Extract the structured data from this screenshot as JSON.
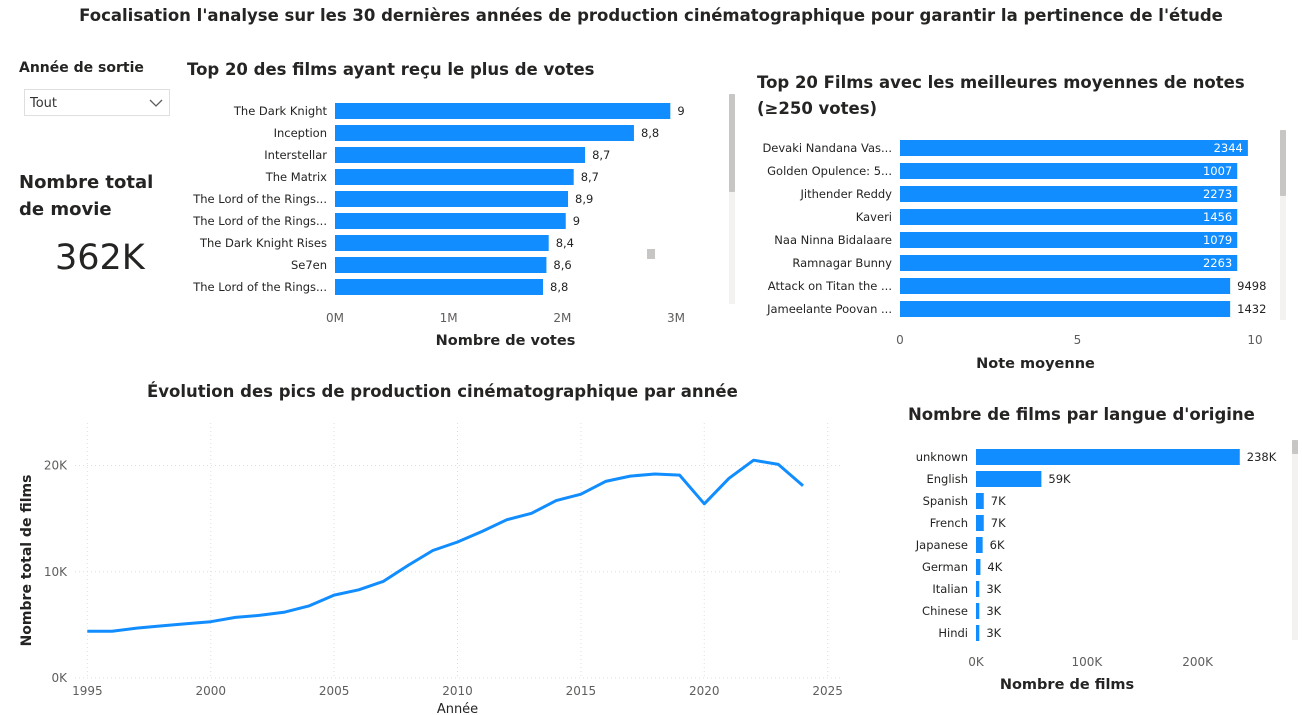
{
  "header": {
    "title": "Focalisation  l'analyse  sur les 30 dernières années de production cinématographique pour garantir la pertinence de l'étude"
  },
  "slicer": {
    "title": "Année de sortie",
    "selected": "Tout"
  },
  "kpi": {
    "label": "Nombre total de movie",
    "value": "362K"
  },
  "colors": {
    "bar": "#118DFF",
    "grid": "#e1dfdd",
    "text": "#252423",
    "axis_text": "#605e5c"
  },
  "chart_data": [
    {
      "type": "bar",
      "orientation": "horizontal",
      "title": "Top 20 des films ayant reçu le plus de votes",
      "xlabel": "Nombre de votes",
      "ylabel": "",
      "xlim": [
        0,
        3000000
      ],
      "tick_values": [
        0,
        1000000,
        2000000,
        3000000
      ],
      "tick_labels": [
        "0M",
        "1M",
        "2M",
        "3M"
      ],
      "categories": [
        "The Dark Knight",
        "Inception",
        "Interstellar",
        "The Matrix",
        "The Lord of the Rings...",
        "The Lord of the Rings...",
        "The Dark Knight Rises",
        "Se7en",
        "The Lord of the Rings..."
      ],
      "values": [
        2950000,
        2630000,
        2200000,
        2100000,
        2050000,
        2030000,
        1880000,
        1860000,
        1830000
      ],
      "data_labels": [
        "9",
        "8,8",
        "8,7",
        "8,7",
        "8,9",
        "9",
        "8,4",
        "8,6",
        "8,8"
      ]
    },
    {
      "type": "bar",
      "orientation": "horizontal",
      "title": "Top 20 Films avec les meilleures moyennes de notes (≥250 votes)",
      "xlabel": "Note moyenne",
      "ylabel": "",
      "xlim": [
        0,
        10
      ],
      "tick_values": [
        0,
        5,
        10
      ],
      "tick_labels": [
        "0",
        "5",
        "10"
      ],
      "categories": [
        "Devaki Nandana Vas...",
        "Golden Opulence: 5...",
        "Jithender Reddy",
        "Kaveri",
        "Naa Ninna Bidalaare",
        "Ramnagar Bunny",
        "Attack on Titan the ...",
        "Jameelante Poovan ..."
      ],
      "values": [
        9.8,
        9.5,
        9.5,
        9.5,
        9.5,
        9.5,
        9.3,
        9.3
      ],
      "data_labels": [
        "2344",
        "1007",
        "2273",
        "1456",
        "1079",
        "2263",
        "9498",
        "1432"
      ],
      "label_inside": [
        true,
        true,
        true,
        true,
        true,
        true,
        false,
        false
      ]
    },
    {
      "type": "line",
      "title": "Évolution des pics de production cinématographique par année",
      "xlabel": "Année",
      "ylabel": "Nombre total de films",
      "xlim": [
        1994.5,
        2025.5
      ],
      "ylim": [
        0,
        24000
      ],
      "x_ticks": [
        1995,
        2000,
        2005,
        2010,
        2015,
        2020,
        2025
      ],
      "y_ticks": [
        0,
        10000,
        20000
      ],
      "y_tick_labels": [
        "0K",
        "10K",
        "20K"
      ],
      "grid": true,
      "x": [
        1995,
        1996,
        1997,
        1998,
        1999,
        2000,
        2001,
        2002,
        2003,
        2004,
        2005,
        2006,
        2007,
        2008,
        2009,
        2010,
        2011,
        2012,
        2013,
        2014,
        2015,
        2016,
        2017,
        2018,
        2019,
        2020,
        2021,
        2022,
        2023,
        2024
      ],
      "y": [
        4400,
        4400,
        4700,
        4900,
        5100,
        5300,
        5700,
        5900,
        6200,
        6800,
        7800,
        8300,
        9100,
        10600,
        12000,
        12800,
        13800,
        14900,
        15500,
        16700,
        17300,
        18500,
        19000,
        19200,
        19100,
        16400,
        18800,
        20500,
        20100,
        18100
      ]
    },
    {
      "type": "bar",
      "orientation": "horizontal",
      "title": "Nombre de films par langue d'origine",
      "xlabel": "Nombre de films",
      "ylabel": "",
      "xlim": [
        0,
        240000
      ],
      "tick_values": [
        0,
        100000,
        200000
      ],
      "tick_labels": [
        "0K",
        "100K",
        "200K"
      ],
      "categories": [
        "unknown",
        "English",
        "Spanish",
        "French",
        "Japanese",
        "German",
        "Italian",
        "Chinese",
        "Hindi"
      ],
      "values": [
        238000,
        59000,
        7000,
        7000,
        6000,
        4000,
        3000,
        3000,
        3000
      ],
      "data_labels": [
        "238K",
        "59K",
        "7K",
        "7K",
        "6K",
        "4K",
        "3K",
        "3K",
        "3K"
      ]
    }
  ]
}
